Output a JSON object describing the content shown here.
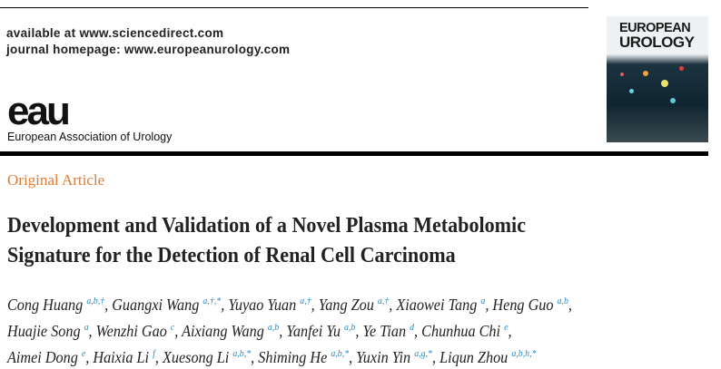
{
  "header": {
    "available": "available at www.sciencedirect.com",
    "homepage": "journal homepage: www.europeanurology.com",
    "logo_mark": "eau",
    "logo_text": "European Association of Urology",
    "cover_title": [
      "EUROPEAN",
      "UROLOGY"
    ]
  },
  "article": {
    "type": "Original Article",
    "title_lines": [
      "Development and Validation of a Novel Plasma Metabolomic",
      "Signature for the Detection of Renal Cell Carcinoma"
    ],
    "authors": [
      {
        "name": "Cong Huang",
        "sup": "a,b,†"
      },
      {
        "name": "Guangxi Wang",
        "sup": "a,†,*"
      },
      {
        "name": "Yuyao Yuan",
        "sup": "a,†"
      },
      {
        "name": "Yang Zou",
        "sup": "a,†"
      },
      {
        "name": "Xiaowei Tang",
        "sup": "a"
      },
      {
        "name": "Heng Guo",
        "sup": "a,b"
      },
      {
        "name": "Huajie Song",
        "sup": "a"
      },
      {
        "name": "Wenzhi Gao",
        "sup": "c"
      },
      {
        "name": "Aixiang Wang",
        "sup": "a,b"
      },
      {
        "name": "Yanfei Yu",
        "sup": "a,b"
      },
      {
        "name": "Ye Tian",
        "sup": "d"
      },
      {
        "name": "Chunhua Chi",
        "sup": "e"
      },
      {
        "name": "Aimei Dong",
        "sup": "e"
      },
      {
        "name": "Haixia Li",
        "sup": "f"
      },
      {
        "name": "Xuesong Li",
        "sup": "a,b,*"
      },
      {
        "name": "Shiming He",
        "sup": "a,b,*"
      },
      {
        "name": "Yuxin Yin",
        "sup": "a,g,*"
      },
      {
        "name": "Liqun Zhou",
        "sup": "a,b,h,*"
      }
    ]
  },
  "colors": {
    "accent": "#e07b33",
    "superscript": "#2a8cc0"
  }
}
